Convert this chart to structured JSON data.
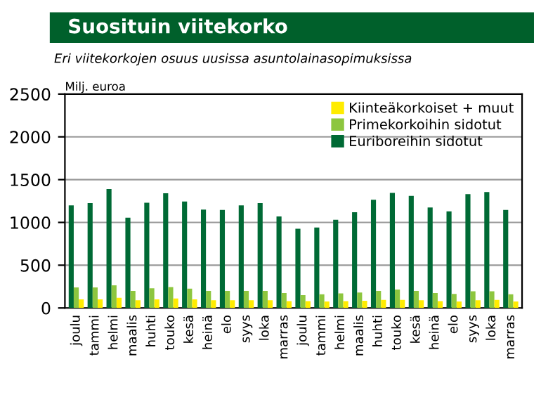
{
  "chart_data": {
    "type": "bar",
    "title": "Suosituin viitekorko",
    "subtitle": "Eri viitekorkojen osuus uusissa asuntolainasopimuksissa",
    "ylabel": "Milj. euroa",
    "categories": [
      "joulu",
      "tammi",
      "helmi",
      "maalis",
      "huhti",
      "touko",
      "kesä",
      "heinä",
      "elo",
      "syys",
      "loka",
      "marras",
      "joulu",
      "tammi",
      "helmi",
      "maalis",
      "huhti",
      "touko",
      "kesä",
      "heinä",
      "elo",
      "syys",
      "loka",
      "marras"
    ],
    "series": [
      {
        "name": "Euriboreihin sidotut",
        "color": "#006a35",
        "values": [
          1200,
          1225,
          1390,
          1055,
          1230,
          1340,
          1245,
          1150,
          1145,
          1200,
          1225,
          1070,
          925,
          940,
          1030,
          1120,
          1265,
          1345,
          1310,
          1175,
          1130,
          1330,
          1355,
          1145
        ]
      },
      {
        "name": "Primekorkoihin sidotut",
        "color": "#8dc63f",
        "values": [
          240,
          240,
          265,
          200,
          230,
          245,
          225,
          200,
          200,
          200,
          200,
          175,
          150,
          160,
          170,
          180,
          200,
          215,
          200,
          175,
          165,
          195,
          195,
          160
        ]
      },
      {
        "name": "Kiinteäkorkoiset + muut",
        "color": "#ffec00",
        "values": [
          100,
          100,
          120,
          90,
          100,
          110,
          100,
          90,
          90,
          90,
          90,
          80,
          80,
          75,
          80,
          85,
          95,
          95,
          90,
          80,
          75,
          90,
          95,
          75
        ]
      }
    ],
    "ylim": [
      0,
      2500
    ],
    "yticks": [
      0,
      500,
      1000,
      1500,
      2000,
      2500
    ],
    "grid": "y",
    "legend": "top right"
  }
}
